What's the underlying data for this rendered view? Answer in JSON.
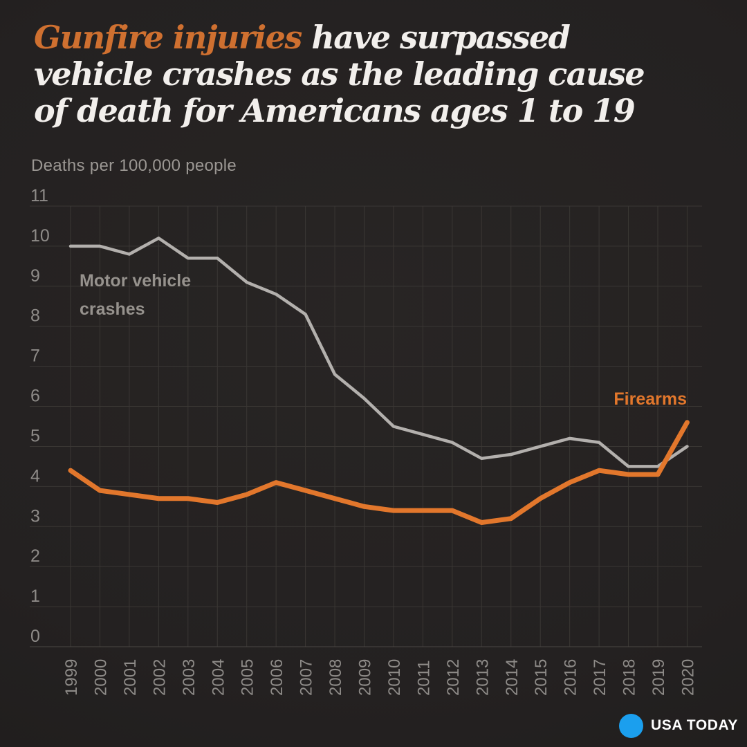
{
  "header": {
    "highlight": "Gunfire injuries",
    "highlight_color": "#cf7030",
    "rest_line1": " have surpassed",
    "line2": "vehicle crashes as the leading cause",
    "line3": "of death for Americans ages 1 to 19"
  },
  "chart_data": {
    "type": "line",
    "title": "Gunfire injuries have surpassed vehicle crashes as the leading cause of death for Americans ages 1 to 19",
    "ylabel": "Deaths per 100,000 people",
    "xlabel": "",
    "x": [
      1999,
      2000,
      2001,
      2002,
      2003,
      2004,
      2005,
      2006,
      2007,
      2008,
      2009,
      2010,
      2011,
      2012,
      2013,
      2014,
      2015,
      2016,
      2017,
      2018,
      2019,
      2020
    ],
    "series": [
      {
        "name": "Motor vehicle crashes",
        "color": "#b3b0ad",
        "label_color": "#96928d",
        "values": [
          10.0,
          10.0,
          9.8,
          10.2,
          9.7,
          9.7,
          9.1,
          8.8,
          8.3,
          6.8,
          6.2,
          5.5,
          5.3,
          5.1,
          4.7,
          4.8,
          5.0,
          5.2,
          5.1,
          4.5,
          4.5,
          5.0
        ]
      },
      {
        "name": "Firearms",
        "color": "#e2772c",
        "label_color": "#e2772c",
        "values": [
          4.4,
          3.9,
          3.8,
          3.7,
          3.7,
          3.6,
          3.8,
          4.1,
          3.9,
          3.7,
          3.5,
          3.4,
          3.4,
          3.4,
          3.1,
          3.2,
          3.7,
          4.1,
          4.4,
          4.3,
          4.3,
          5.6
        ]
      }
    ],
    "ylim": [
      0,
      11
    ],
    "yticks": [
      0,
      1,
      2,
      3,
      4,
      5,
      6,
      7,
      8,
      9,
      10,
      11
    ],
    "grid": true,
    "legend_position": "inline-annotations",
    "annotations": {
      "motor_vehicle_line1": "Motor vehicle",
      "motor_vehicle_line2": "crashes",
      "firearms": "Firearms"
    }
  },
  "footer": {
    "brand": "USA TODAY",
    "ball_color": "#1b9fee"
  }
}
